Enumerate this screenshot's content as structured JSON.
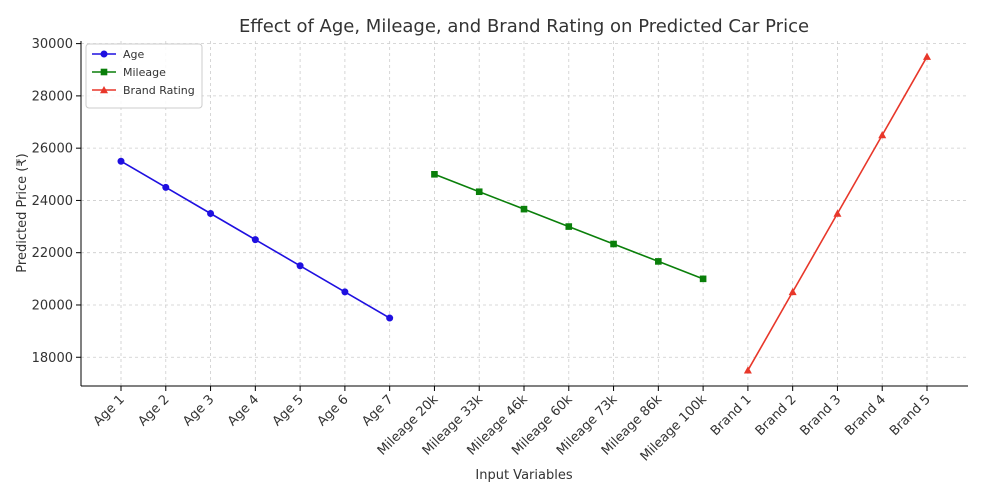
{
  "chart_data": {
    "type": "line",
    "title": "Effect of Age, Mileage, and Brand Rating on Predicted Car Price",
    "xlabel": "Input Variables",
    "ylabel": "Predicted Price (₹)",
    "ylim": [
      16900,
      30100
    ],
    "yticks": [
      18000,
      20000,
      22000,
      24000,
      26000,
      28000,
      30000
    ],
    "grid": true,
    "legend_position": "top-left",
    "categories": [
      "Age 1",
      "Age 2",
      "Age 3",
      "Age 4",
      "Age 5",
      "Age 6",
      "Age 7",
      "Mileage 20k",
      "Mileage 33k",
      "Mileage 46k",
      "Mileage 60k",
      "Mileage 73k",
      "Mileage 86k",
      "Mileage 100k",
      "Brand 1",
      "Brand 2",
      "Brand 3",
      "Brand 4",
      "Brand 5"
    ],
    "series": [
      {
        "name": "Age",
        "color": "#1f10e0",
        "marker": "circle",
        "x": [
          "Age 1",
          "Age 2",
          "Age 3",
          "Age 4",
          "Age 5",
          "Age 6",
          "Age 7"
        ],
        "values": [
          25500,
          24500,
          23500,
          22500,
          21500,
          20500,
          19500
        ]
      },
      {
        "name": "Mileage",
        "color": "#0a7f0a",
        "marker": "square",
        "x": [
          "Mileage 20k",
          "Mileage 33k",
          "Mileage 46k",
          "Mileage 60k",
          "Mileage 73k",
          "Mileage 86k",
          "Mileage 100k"
        ],
        "values": [
          25000,
          24333,
          23667,
          23000,
          22333,
          21667,
          21000
        ]
      },
      {
        "name": "Brand Rating",
        "color": "#e8372a",
        "marker": "triangle",
        "x": [
          "Brand 1",
          "Brand 2",
          "Brand 3",
          "Brand 4",
          "Brand 5"
        ],
        "values": [
          17500,
          20500,
          23500,
          26500,
          29500
        ]
      }
    ]
  }
}
